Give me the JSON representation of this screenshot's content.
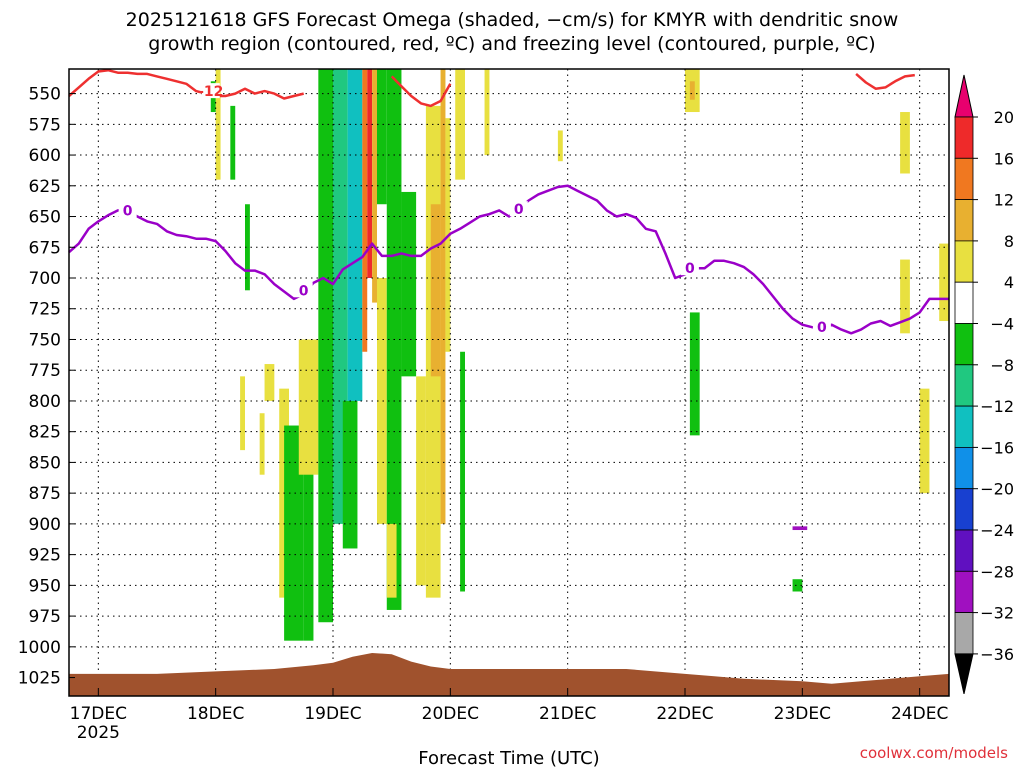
{
  "title_line1": "2025121618 GFS Forecast Omega (shaded, −cm/s) for KMYR with dendritic snow",
  "title_line2": "growth region (contoured, red, ºC) and freezing level (contoured, purple, ºC)",
  "credit": "coolwx.com/models",
  "chart_data": {
    "type": "heatmap",
    "title": "2025121618 GFS Forecast Omega (shaded, −cm/s) for KMYR with dendritic snow growth region (contoured, red, ºC) and freezing level (contoured, purple, ºC)",
    "xlabel": "Forecast Time (UTC)",
    "ylabel": "",
    "x_range_hours": [
      -6,
      174
    ],
    "x_ticks": [
      {
        "label": "17DEC",
        "sub": "2025",
        "hour": 0
      },
      {
        "label": "18DEC",
        "hour": 24
      },
      {
        "label": "19DEC",
        "hour": 48
      },
      {
        "label": "20DEC",
        "hour": 72
      },
      {
        "label": "21DEC",
        "hour": 96
      },
      {
        "label": "22DEC",
        "hour": 120
      },
      {
        "label": "23DEC",
        "hour": 144
      },
      {
        "label": "24DEC",
        "hour": 168
      }
    ],
    "y_range_hpa": [
      530,
      1040
    ],
    "y_ticks": [
      550,
      575,
      600,
      625,
      650,
      675,
      700,
      725,
      750,
      775,
      800,
      825,
      850,
      875,
      900,
      925,
      950,
      975,
      1000,
      1025
    ],
    "grid": true,
    "colorbar": {
      "tick_labels": [
        "20",
        "16",
        "12",
        "8",
        "4",
        "−4",
        "−8",
        "−12",
        "−16",
        "−20",
        "−24",
        "−28",
        "−32",
        "−36"
      ],
      "colors": [
        "#e8006e",
        "#ee2a2a",
        "#f07820",
        "#e8b030",
        "#e8e040",
        "#ffffff",
        "#10c010",
        "#20c880",
        "#10c0c0",
        "#1090e8",
        "#1840d0",
        "#6010c0",
        "#a010c0",
        "#a8a8a8",
        "#000000"
      ]
    },
    "contour_labels": [
      {
        "text": "0",
        "series": "freezing_level"
      },
      {
        "text": "-12",
        "series": "dendritic_growth"
      }
    ],
    "freezing_level": {
      "color": "#9a00c8",
      "hours": [
        -6,
        -4,
        -2,
        0,
        2,
        4,
        6,
        8,
        10,
        12,
        14,
        16,
        18,
        20,
        22,
        24,
        26,
        28,
        30,
        32,
        34,
        36,
        38,
        40,
        42,
        44,
        46,
        48,
        50,
        52,
        54,
        56,
        58,
        60,
        62,
        64,
        66,
        68,
        70,
        72,
        74,
        76,
        78,
        80,
        82,
        84,
        86,
        88,
        90,
        92,
        94,
        96,
        98,
        100,
        102,
        104,
        106,
        108,
        110,
        112,
        114,
        116,
        118,
        120,
        122,
        124,
        126,
        128,
        130,
        132,
        134,
        136,
        138,
        140,
        142,
        144,
        146,
        148,
        150,
        152,
        154,
        156,
        158,
        160,
        162,
        164,
        166,
        168,
        170,
        172,
        174
      ],
      "hpa": [
        679,
        672,
        660,
        654,
        649,
        645,
        645,
        650,
        654,
        656,
        662,
        665,
        666,
        668,
        668,
        670,
        678,
        688,
        694,
        694,
        697,
        705,
        711,
        717,
        713,
        704,
        700,
        705,
        693,
        688,
        683,
        672,
        682,
        682,
        680,
        682,
        682,
        676,
        672,
        664,
        660,
        655,
        650,
        648,
        645,
        650,
        644,
        637,
        632,
        629,
        626,
        625,
        629,
        633,
        637,
        645,
        650,
        648,
        651,
        660,
        662,
        680,
        700,
        697,
        692,
        692,
        686,
        686,
        688,
        691,
        697,
        705,
        715,
        725,
        733,
        738,
        740,
        740,
        738,
        742,
        745,
        742,
        737,
        735,
        739,
        736,
        733,
        728,
        717,
        717,
        717
      ]
    },
    "dendritic_growth": {
      "color": "#ee3030",
      "segments": [
        {
          "hours": [
            -6,
            -4,
            -2,
            0,
            2,
            4,
            6,
            8,
            10,
            12,
            14,
            16,
            18,
            20,
            22,
            24,
            26,
            28,
            30,
            32,
            34,
            36,
            38,
            40,
            42
          ],
          "hpa": [
            552,
            545,
            538,
            532,
            531,
            533,
            533,
            534,
            534,
            536,
            538,
            540,
            542,
            548,
            550,
            552,
            552,
            550,
            546,
            550,
            548,
            550,
            554,
            552,
            550
          ]
        },
        {
          "hours": [
            60,
            62,
            64,
            66,
            68,
            70,
            72
          ],
          "hpa": [
            536,
            544,
            552,
            558,
            560,
            556,
            542
          ]
        },
        {
          "hours": [
            155,
            157,
            159,
            161,
            163,
            165,
            167
          ],
          "hpa": [
            534,
            541,
            546,
            545,
            540,
            536,
            535
          ]
        }
      ]
    },
    "omega_regions": [
      {
        "hour_start": 24,
        "hour_end": 25,
        "hpa_top": 530,
        "hpa_bottom": 620,
        "value": 6
      },
      {
        "hour_start": 23,
        "hour_end": 24,
        "hpa_top": 540,
        "hpa_bottom": 565,
        "value": -6
      },
      {
        "hour_start": 27,
        "hour_end": 28,
        "hpa_top": 560,
        "hpa_bottom": 620,
        "value": -6
      },
      {
        "hour_start": 30,
        "hour_end": 31,
        "hpa_top": 640,
        "hpa_bottom": 710,
        "value": -6
      },
      {
        "hour_start": 29,
        "hour_end": 30,
        "hpa_top": 780,
        "hpa_bottom": 840,
        "value": 6
      },
      {
        "hour_start": 33,
        "hour_end": 34,
        "hpa_top": 810,
        "hpa_bottom": 860,
        "value": 6
      },
      {
        "hour_start": 34,
        "hour_end": 36,
        "hpa_top": 770,
        "hpa_bottom": 800,
        "value": 6
      },
      {
        "hour_start": 37,
        "hour_end": 39,
        "hpa_top": 790,
        "hpa_bottom": 960,
        "value": 6
      },
      {
        "hour_start": 38,
        "hour_end": 42,
        "hpa_top": 820,
        "hpa_bottom": 995,
        "value": -6
      },
      {
        "hour_start": 42,
        "hour_end": 44,
        "hpa_top": 850,
        "hpa_bottom": 995,
        "value": -6
      },
      {
        "hour_start": 41,
        "hour_end": 45,
        "hpa_top": 750,
        "hpa_bottom": 860,
        "value": 6
      },
      {
        "hour_start": 45,
        "hour_end": 48,
        "hpa_top": 530,
        "hpa_bottom": 980,
        "value": -6
      },
      {
        "hour_start": 48,
        "hour_end": 51,
        "hpa_top": 530,
        "hpa_bottom": 900,
        "value": -10
      },
      {
        "hour_start": 51,
        "hour_end": 54,
        "hpa_top": 530,
        "hpa_bottom": 800,
        "value": -14
      },
      {
        "hour_start": 50,
        "hour_end": 53,
        "hpa_top": 800,
        "hpa_bottom": 920,
        "value": -6
      },
      {
        "hour_start": 54,
        "hour_end": 55,
        "hpa_top": 530,
        "hpa_bottom": 760,
        "value": 14
      },
      {
        "hour_start": 55,
        "hour_end": 56,
        "hpa_top": 530,
        "hpa_bottom": 700,
        "value": 18
      },
      {
        "hour_start": 56,
        "hour_end": 57,
        "hpa_top": 530,
        "hpa_bottom": 720,
        "value": 10
      },
      {
        "hour_start": 57,
        "hour_end": 59,
        "hpa_top": 700,
        "hpa_bottom": 900,
        "value": 6
      },
      {
        "hour_start": 57,
        "hour_end": 59,
        "hpa_top": 530,
        "hpa_bottom": 640,
        "value": -6
      },
      {
        "hour_start": 59,
        "hour_end": 62,
        "hpa_top": 530,
        "hpa_bottom": 970,
        "value": -6
      },
      {
        "hour_start": 59,
        "hour_end": 61,
        "hpa_top": 900,
        "hpa_bottom": 960,
        "value": 6
      },
      {
        "hour_start": 62,
        "hour_end": 65,
        "hpa_top": 630,
        "hpa_bottom": 780,
        "value": -6
      },
      {
        "hour_start": 65,
        "hour_end": 67,
        "hpa_top": 780,
        "hpa_bottom": 950,
        "value": 6
      },
      {
        "hour_start": 67,
        "hour_end": 70,
        "hpa_top": 560,
        "hpa_bottom": 960,
        "value": 6
      },
      {
        "hour_start": 68,
        "hour_end": 70,
        "hpa_top": 640,
        "hpa_bottom": 780,
        "value": 10
      },
      {
        "hour_start": 70,
        "hour_end": 71,
        "hpa_top": 530,
        "hpa_bottom": 900,
        "value": 10
      },
      {
        "hour_start": 71,
        "hour_end": 72,
        "hpa_top": 570,
        "hpa_bottom": 760,
        "value": 6
      },
      {
        "hour_start": 74,
        "hour_end": 75,
        "hpa_top": 760,
        "hpa_bottom": 955,
        "value": -6
      },
      {
        "hour_start": 73,
        "hour_end": 75,
        "hpa_top": 530,
        "hpa_bottom": 620,
        "value": 6
      },
      {
        "hour_start": 79,
        "hour_end": 80,
        "hpa_top": 530,
        "hpa_bottom": 600,
        "value": 6
      },
      {
        "hour_start": 94,
        "hour_end": 95,
        "hpa_top": 580,
        "hpa_bottom": 605,
        "value": 6
      },
      {
        "hour_start": 120,
        "hour_end": 123,
        "hpa_top": 530,
        "hpa_bottom": 565,
        "value": 6
      },
      {
        "hour_start": 121,
        "hour_end": 122,
        "hpa_top": 540,
        "hpa_bottom": 555,
        "value": 10
      },
      {
        "hour_start": 121,
        "hour_end": 123,
        "hpa_top": 728,
        "hpa_bottom": 828,
        "value": -6
      },
      {
        "hour_start": 142,
        "hour_end": 144,
        "hpa_top": 945,
        "hpa_bottom": 955,
        "value": -6
      },
      {
        "hour_start": 142,
        "hour_end": 145,
        "hpa_top": 902,
        "hpa_bottom": 905,
        "value": -28
      },
      {
        "hour_start": 164,
        "hour_end": 166,
        "hpa_top": 565,
        "hpa_bottom": 615,
        "value": 6
      },
      {
        "hour_start": 164,
        "hour_end": 166,
        "hpa_top": 685,
        "hpa_bottom": 745,
        "value": 6
      },
      {
        "hour_start": 168,
        "hour_end": 170,
        "hpa_top": 790,
        "hpa_bottom": 875,
        "value": 6
      },
      {
        "hour_start": 172,
        "hour_end": 174,
        "hpa_top": 672,
        "hpa_bottom": 735,
        "value": 6
      }
    ],
    "terrain": {
      "color": "#a0522d",
      "hours": [
        -6,
        0,
        12,
        24,
        36,
        44,
        48,
        52,
        56,
        60,
        64,
        68,
        72,
        80,
        96,
        108,
        120,
        126,
        132,
        144,
        150,
        156,
        162,
        168,
        174
      ],
      "hpa": [
        1022,
        1022,
        1022,
        1020,
        1018,
        1015,
        1013,
        1008,
        1005,
        1006,
        1012,
        1016,
        1018,
        1018,
        1018,
        1018,
        1022,
        1024,
        1026,
        1028,
        1030,
        1028,
        1026,
        1024,
        1022
      ]
    }
  }
}
